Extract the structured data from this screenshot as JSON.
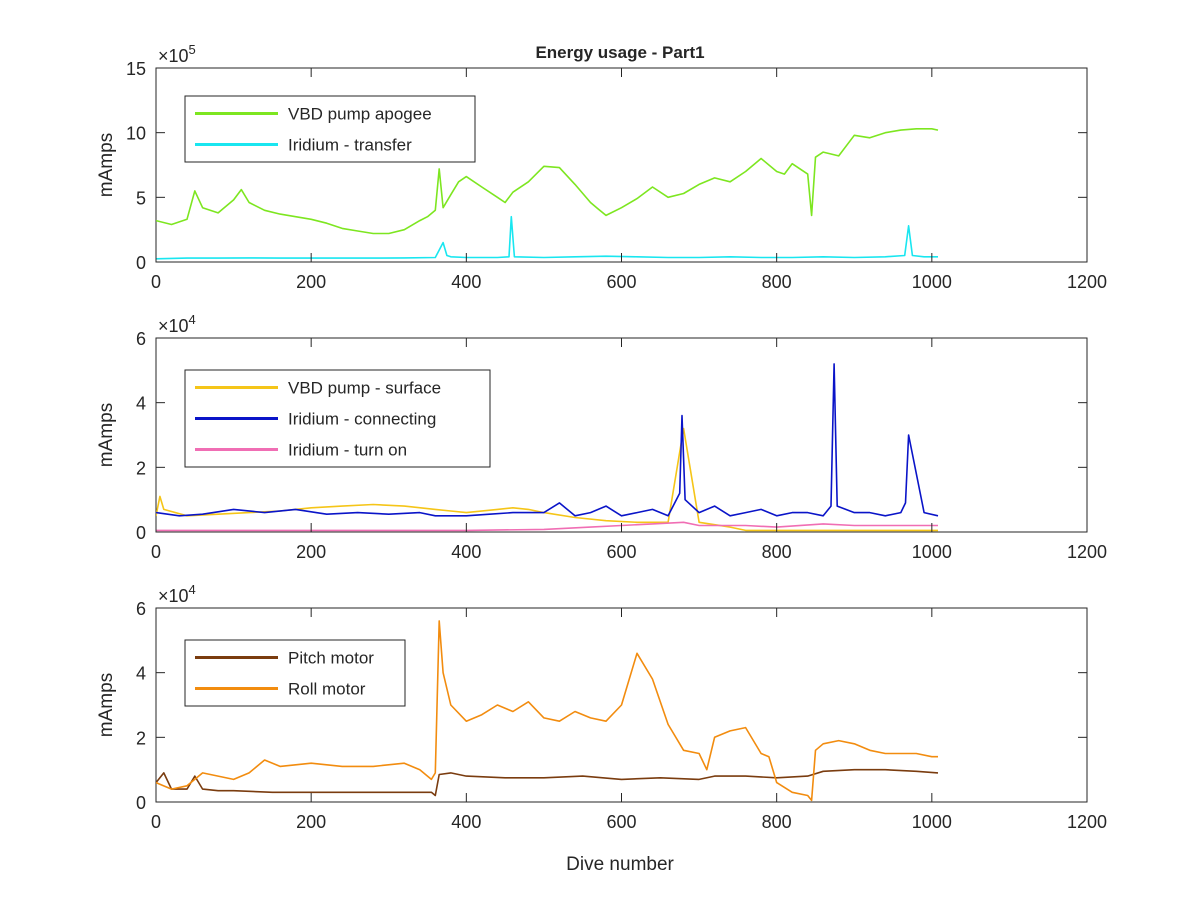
{
  "figure": {
    "title": "Energy usage - Part1",
    "xlabel": "Dive number"
  },
  "chart_data": [
    {
      "type": "line",
      "ylabel": "mAmps",
      "exponent_base": "×10",
      "exponent": "5",
      "xlim": [
        0,
        1200
      ],
      "ylim": [
        0,
        15
      ],
      "xticks": [
        "0",
        "200",
        "400",
        "600",
        "800",
        "1000",
        "1200"
      ],
      "yticks": [
        "0",
        "5",
        "10",
        "15"
      ],
      "grid": false,
      "legend_position": "top-left",
      "series": [
        {
          "name": "VBD pump apogee",
          "color": "#7de620",
          "x": [
            0,
            20,
            40,
            50,
            60,
            80,
            100,
            110,
            120,
            140,
            160,
            180,
            200,
            220,
            240,
            260,
            280,
            300,
            320,
            340,
            350,
            360,
            365,
            370,
            380,
            390,
            400,
            420,
            440,
            450,
            460,
            480,
            500,
            520,
            540,
            560,
            570,
            580,
            600,
            620,
            640,
            660,
            680,
            700,
            720,
            740,
            760,
            780,
            800,
            810,
            820,
            840,
            845,
            850,
            860,
            880,
            900,
            920,
            940,
            960,
            980,
            1000,
            1008
          ],
          "values": [
            3.2,
            2.9,
            3.3,
            5.5,
            4.2,
            3.8,
            4.8,
            5.6,
            4.6,
            4.0,
            3.7,
            3.5,
            3.3,
            3.0,
            2.6,
            2.4,
            2.2,
            2.2,
            2.5,
            3.2,
            3.5,
            4.0,
            7.2,
            4.2,
            5.2,
            6.2,
            6.6,
            5.8,
            5.0,
            4.6,
            5.4,
            6.2,
            7.4,
            7.3,
            6.0,
            4.6,
            4.1,
            3.6,
            4.2,
            4.9,
            5.8,
            5.0,
            5.3,
            6.0,
            6.5,
            6.2,
            7.0,
            8.0,
            7.0,
            6.8,
            7.6,
            6.8,
            3.6,
            8.1,
            8.5,
            8.2,
            9.8,
            9.6,
            10.0,
            10.2,
            10.3,
            10.3,
            10.2
          ]
        },
        {
          "name": "Iridium - transfer",
          "color": "#19e6f0",
          "x": [
            0,
            40,
            80,
            120,
            160,
            200,
            240,
            280,
            320,
            360,
            370,
            375,
            380,
            400,
            440,
            455,
            458,
            462,
            500,
            540,
            580,
            620,
            660,
            700,
            740,
            780,
            820,
            860,
            900,
            940,
            965,
            970,
            975,
            990,
            1008
          ],
          "values": [
            0.25,
            0.3,
            0.3,
            0.32,
            0.3,
            0.3,
            0.3,
            0.3,
            0.32,
            0.35,
            1.5,
            0.5,
            0.4,
            0.35,
            0.35,
            0.4,
            3.5,
            0.4,
            0.35,
            0.4,
            0.45,
            0.4,
            0.35,
            0.35,
            0.4,
            0.35,
            0.35,
            0.4,
            0.35,
            0.4,
            0.5,
            2.8,
            0.5,
            0.4,
            0.4
          ]
        }
      ]
    },
    {
      "type": "line",
      "ylabel": "mAmps",
      "exponent_base": "×10",
      "exponent": "4",
      "xlim": [
        0,
        1200
      ],
      "ylim": [
        0,
        6
      ],
      "xticks": [
        "0",
        "200",
        "400",
        "600",
        "800",
        "1000",
        "1200"
      ],
      "yticks": [
        "0",
        "2",
        "4",
        "6"
      ],
      "grid": false,
      "legend_position": "top-left",
      "series": [
        {
          "name": "VBD pump - surface",
          "color": "#f5c518",
          "x": [
            0,
            5,
            10,
            40,
            80,
            120,
            160,
            200,
            240,
            280,
            320,
            360,
            380,
            400,
            440,
            460,
            480,
            500,
            540,
            580,
            620,
            660,
            680,
            700,
            740,
            760,
            800,
            840,
            880,
            920,
            960,
            1000,
            1008
          ],
          "values": [
            0.5,
            1.1,
            0.7,
            0.5,
            0.55,
            0.6,
            0.65,
            0.75,
            0.8,
            0.85,
            0.8,
            0.7,
            0.65,
            0.6,
            0.7,
            0.75,
            0.7,
            0.6,
            0.45,
            0.35,
            0.3,
            0.3,
            3.2,
            0.3,
            0.15,
            0.05,
            0.05,
            0.05,
            0.05,
            0.05,
            0.05,
            0.05,
            0.05
          ]
        },
        {
          "name": "Iridium - connecting",
          "color": "#0a14c8",
          "x": [
            0,
            30,
            60,
            100,
            140,
            180,
            220,
            260,
            300,
            340,
            360,
            400,
            430,
            460,
            500,
            520,
            540,
            560,
            580,
            600,
            620,
            640,
            660,
            675,
            678,
            682,
            700,
            720,
            740,
            760,
            780,
            800,
            820,
            840,
            860,
            870,
            874,
            878,
            900,
            920,
            940,
            960,
            966,
            970,
            990,
            1008
          ],
          "values": [
            0.6,
            0.5,
            0.55,
            0.7,
            0.6,
            0.7,
            0.55,
            0.6,
            0.55,
            0.6,
            0.5,
            0.5,
            0.55,
            0.6,
            0.6,
            0.9,
            0.5,
            0.6,
            0.8,
            0.5,
            0.6,
            0.7,
            0.5,
            1.2,
            3.6,
            1.0,
            0.6,
            0.8,
            0.5,
            0.6,
            0.7,
            0.5,
            0.6,
            0.6,
            0.5,
            0.8,
            5.2,
            0.8,
            0.6,
            0.6,
            0.5,
            0.6,
            0.9,
            3.0,
            0.6,
            0.5
          ]
        },
        {
          "name": "Iridium - turn on",
          "color": "#f06eb4",
          "x": [
            0,
            100,
            200,
            300,
            400,
            500,
            560,
            600,
            640,
            680,
            700,
            760,
            800,
            860,
            900,
            960,
            1008
          ],
          "values": [
            0.05,
            0.05,
            0.05,
            0.05,
            0.05,
            0.08,
            0.15,
            0.2,
            0.25,
            0.3,
            0.2,
            0.2,
            0.15,
            0.25,
            0.2,
            0.2,
            0.2
          ]
        }
      ]
    },
    {
      "type": "line",
      "ylabel": "mAmps",
      "exponent_base": "×10",
      "exponent": "4",
      "xlim": [
        0,
        1200
      ],
      "ylim": [
        0,
        6
      ],
      "xticks": [
        "0",
        "200",
        "400",
        "600",
        "800",
        "1000",
        "1200"
      ],
      "yticks": [
        "0",
        "2",
        "4",
        "6"
      ],
      "xlabel": "Dive number",
      "grid": false,
      "legend_position": "top-left",
      "series": [
        {
          "name": "Pitch motor",
          "color": "#7a3c0f",
          "x": [
            0,
            10,
            20,
            40,
            50,
            60,
            80,
            100,
            150,
            200,
            250,
            300,
            340,
            355,
            360,
            365,
            380,
            400,
            450,
            500,
            550,
            600,
            650,
            700,
            720,
            760,
            800,
            840,
            860,
            900,
            940,
            980,
            1008
          ],
          "values": [
            0.6,
            0.9,
            0.4,
            0.4,
            0.8,
            0.4,
            0.35,
            0.35,
            0.3,
            0.3,
            0.3,
            0.3,
            0.3,
            0.3,
            0.2,
            0.85,
            0.9,
            0.8,
            0.75,
            0.75,
            0.8,
            0.7,
            0.75,
            0.7,
            0.8,
            0.8,
            0.75,
            0.8,
            0.95,
            1.0,
            1.0,
            0.95,
            0.9
          ]
        },
        {
          "name": "Roll motor",
          "color": "#f28c0f",
          "x": [
            0,
            20,
            40,
            60,
            80,
            100,
            120,
            140,
            160,
            200,
            240,
            280,
            320,
            340,
            355,
            360,
            365,
            370,
            380,
            400,
            420,
            440,
            460,
            480,
            500,
            520,
            540,
            560,
            580,
            600,
            620,
            640,
            660,
            680,
            700,
            710,
            720,
            740,
            760,
            780,
            790,
            800,
            820,
            840,
            845,
            850,
            860,
            880,
            900,
            920,
            940,
            960,
            980,
            1000,
            1008
          ],
          "values": [
            0.6,
            0.4,
            0.5,
            0.9,
            0.8,
            0.7,
            0.9,
            1.3,
            1.1,
            1.2,
            1.1,
            1.1,
            1.2,
            1.0,
            0.7,
            0.9,
            5.6,
            4.0,
            3.0,
            2.5,
            2.7,
            3.0,
            2.8,
            3.1,
            2.6,
            2.5,
            2.8,
            2.6,
            2.5,
            3.0,
            4.6,
            3.8,
            2.4,
            1.6,
            1.5,
            1.0,
            2.0,
            2.2,
            2.3,
            1.5,
            1.4,
            0.6,
            0.3,
            0.2,
            0.05,
            1.6,
            1.8,
            1.9,
            1.8,
            1.6,
            1.5,
            1.5,
            1.5,
            1.4,
            1.4
          ]
        }
      ]
    }
  ]
}
